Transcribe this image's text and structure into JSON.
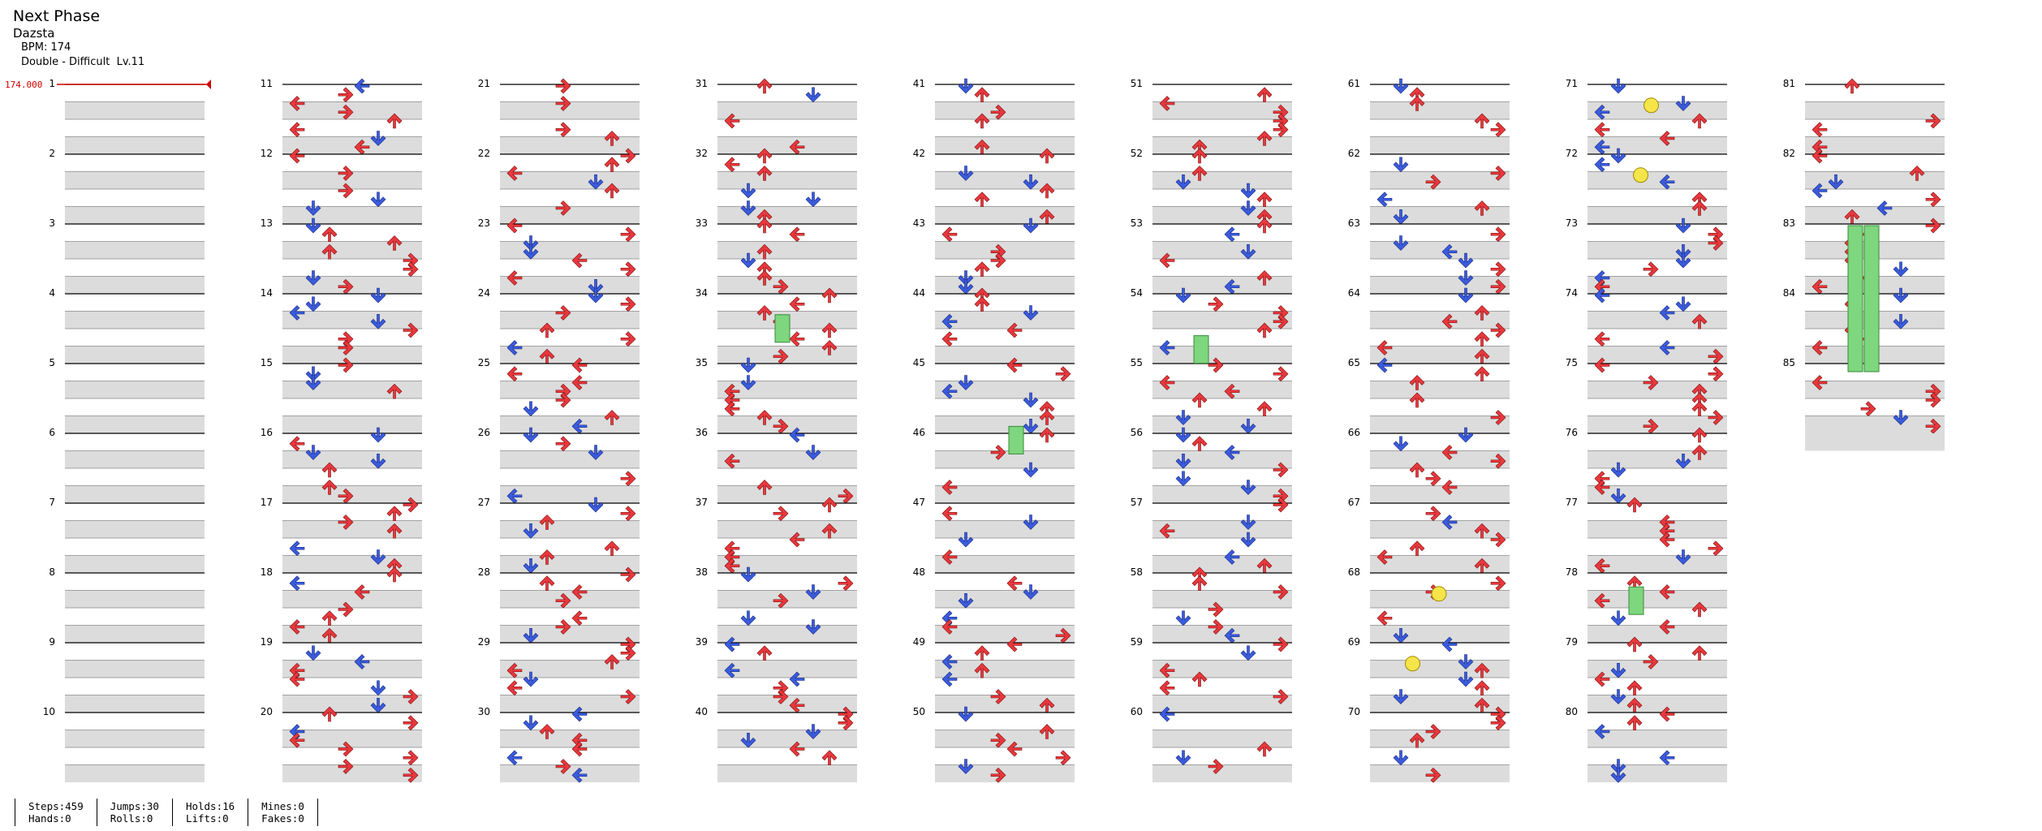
{
  "song": {
    "title": "Next Phase",
    "artist": "Dazsta",
    "bpm_label": "BPM: 174",
    "chart_label": "Double - Difficult  Lv.11"
  },
  "bpm_marker": {
    "value_label": "174.000",
    "color": "#d00000"
  },
  "columns": 9,
  "measures_per_column": 10,
  "total_measures": 85,
  "colors": {
    "arrow_red": "#e8383d",
    "arrow_blue": "#3a5bdc",
    "hold_green": "#7ed67e",
    "roll_yellow": "#f5e54a",
    "stripe": "#dcdcdc"
  },
  "stats": [
    {
      "label": "Steps:459",
      "label2": "Hands:0"
    },
    {
      "label": "Jumps:30",
      "label2": "Rolls:0"
    },
    {
      "label": "Holds:16",
      "label2": "Lifts:0"
    },
    {
      "label": "Mines:0",
      "label2": "Fakes:0"
    }
  ]
}
